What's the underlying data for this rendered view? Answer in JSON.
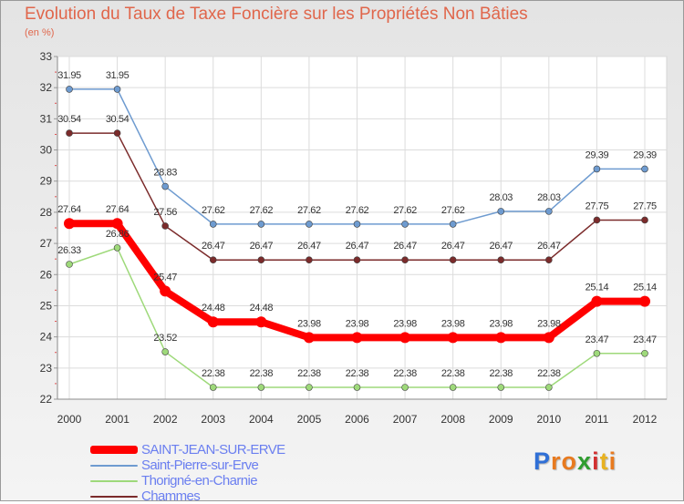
{
  "chart_data": {
    "type": "line",
    "title": "Evolution du Taux de Taxe Foncière sur les Propriétés Non Bâties",
    "subtitle": "(en %)",
    "x": [
      "2000",
      "2001",
      "2002",
      "2003",
      "2004",
      "2005",
      "2006",
      "2007",
      "2008",
      "2009",
      "2010",
      "2011",
      "2012"
    ],
    "ylim": [
      22,
      33
    ],
    "yticks": [
      "22",
      "23",
      "24",
      "25",
      "26",
      "27",
      "28",
      "29",
      "30",
      "31",
      "32",
      "33"
    ],
    "grid": true,
    "legend_position": "bottom-left",
    "series": [
      {
        "name": "SAINT-JEAN-SUR-ERVE",
        "color": "#ff0000",
        "values": [
          27.64,
          27.64,
          25.47,
          24.48,
          24.48,
          23.98,
          23.98,
          23.98,
          23.98,
          23.98,
          23.98,
          25.14,
          25.14
        ],
        "labels": [
          "27.64",
          "27.64",
          "25.47",
          "24.48",
          "24.48",
          "23.98",
          "23.98",
          "23.98",
          "23.98",
          "23.98",
          "23.98",
          "25.14",
          "25.14"
        ]
      },
      {
        "name": "Saint-Pierre-sur-Erve",
        "color": "#6e9bd0",
        "values": [
          31.95,
          31.95,
          28.83,
          27.62,
          27.62,
          27.62,
          27.62,
          27.62,
          27.62,
          28.03,
          28.03,
          29.39,
          29.39
        ],
        "labels": [
          "31.95",
          "31.95",
          "28.83",
          "27.62",
          "27.62",
          "27.62",
          "27.62",
          "27.62",
          "27.62",
          "28.03",
          "28.03",
          "29.39",
          "29.39"
        ]
      },
      {
        "name": "Thorigné-en-Charnie",
        "color": "#9ed97a",
        "values": [
          26.33,
          26.86,
          23.52,
          22.38,
          22.38,
          22.38,
          22.38,
          22.38,
          22.38,
          22.38,
          22.38,
          23.47,
          23.47
        ],
        "labels": [
          "26.33",
          "26.86",
          "23.52",
          "22.38",
          "22.38",
          "22.38",
          "22.38",
          "22.38",
          "22.38",
          "22.38",
          "22.38",
          "23.47",
          "23.47"
        ]
      },
      {
        "name": "Chammes",
        "color": "#7b2b2b",
        "values": [
          30.54,
          30.54,
          27.56,
          26.47,
          26.47,
          26.47,
          26.47,
          26.47,
          26.47,
          26.47,
          26.47,
          27.75,
          27.75
        ],
        "labels": [
          "30.54",
          "30.54",
          "27.56",
          "26.47",
          "26.47",
          "26.47",
          "26.47",
          "26.47",
          "26.47",
          "26.47",
          "26.47",
          "27.75",
          "27.75"
        ]
      }
    ]
  },
  "brand": {
    "letters": [
      "P",
      "r",
      "o",
      "x",
      "i",
      "t",
      "i"
    ],
    "colors": [
      "#2f6fd6",
      "#e87a1f",
      "#e87a1f",
      "#2f9d2f",
      "#d23030",
      "#e8b21f",
      "#e87a1f"
    ]
  }
}
